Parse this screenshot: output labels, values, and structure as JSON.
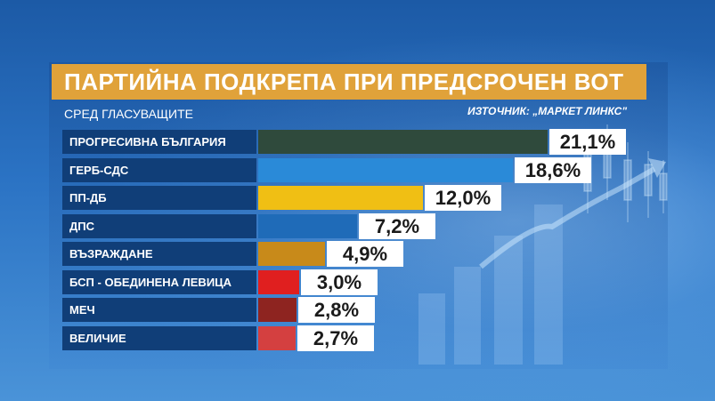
{
  "header": {
    "title": "ПАРТИЙНА ПОДКРЕПА ПРИ ПРЕДСРОЧЕН ВОТ",
    "subtitle": "СРЕД ГЛАСУВАЩИТЕ",
    "source": "ИЗТОЧНИК: „МАРКЕТ ЛИНКС\""
  },
  "colors": {
    "title_bg": "#e0a23a",
    "label_bg": "#103e78"
  },
  "chart_data": {
    "type": "bar",
    "orientation": "horizontal",
    "categories": [
      "ПРОГРЕСИВНА БЪЛГАРИЯ",
      "ГЕРБ-СДС",
      "ПП-ДБ",
      "ДПС",
      "ВЪЗРАЖДАНЕ",
      "БСП - ОБЕДИНЕНА ЛЕВИЦА",
      "МЕЧ",
      "ВЕЛИЧИЕ"
    ],
    "values": [
      21.1,
      18.6,
      12.0,
      7.2,
      4.9,
      3.0,
      2.8,
      2.7
    ],
    "value_labels": [
      "21,1%",
      "18,6%",
      "12,0%",
      "7,2%",
      "4,9%",
      "3,0%",
      "2,8%",
      "2,7%"
    ],
    "colors": [
      "#2f4a3c",
      "#2a8ad8",
      "#f0bf14",
      "#1f6bb8",
      "#c88a1a",
      "#e01f1f",
      "#8e2420",
      "#d44040"
    ],
    "title": "ПАРТИЙНА ПОДКРЕПА ПРИ ПРЕДСРОЧЕН ВОТ",
    "subtitle": "СРЕД ГЛАСУВАЩИТЕ",
    "xlabel": "",
    "ylabel": "",
    "xlim": [
      0,
      21.1
    ],
    "grid": false,
    "legend": "none"
  }
}
